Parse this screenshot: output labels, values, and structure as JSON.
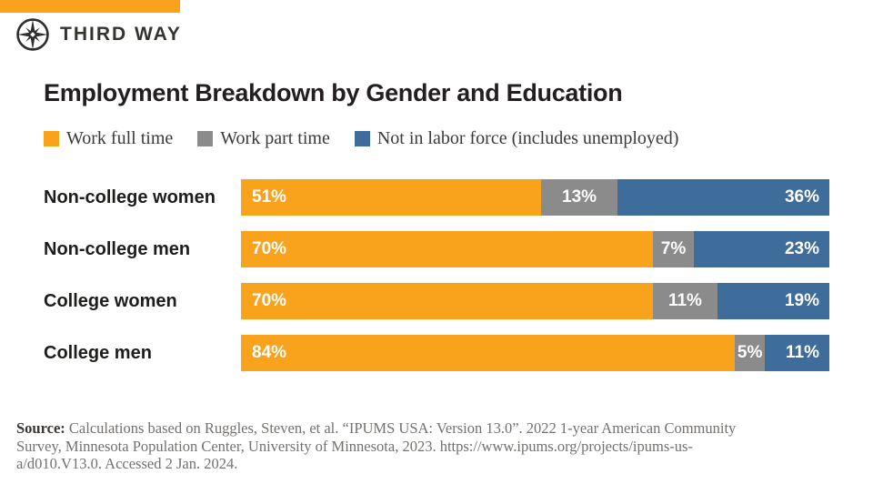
{
  "brand": {
    "name": "THIRD WAY",
    "accent_color": "#F9A21B"
  },
  "title": "Employment Breakdown by Gender and Education",
  "legend": [
    {
      "label": "Work full time",
      "color": "#F9A21B"
    },
    {
      "label": "Work part time",
      "color": "#8B8B8B"
    },
    {
      "label": "Not in labor force (includes unemployed)",
      "color": "#3E6C9B"
    }
  ],
  "chart_data": {
    "type": "bar",
    "orientation": "horizontal",
    "stacked": true,
    "title": "Employment Breakdown by Gender and Education",
    "categories": [
      "Non-college women",
      "Non-college men",
      "College women",
      "College men"
    ],
    "series": [
      {
        "name": "Work full time",
        "color": "#F9A21B",
        "values": [
          51,
          70,
          70,
          84
        ]
      },
      {
        "name": "Work part time",
        "color": "#8B8B8B",
        "values": [
          13,
          7,
          11,
          5
        ]
      },
      {
        "name": "Not in labor force (includes unemployed)",
        "color": "#3E6C9B",
        "values": [
          36,
          23,
          19,
          11
        ]
      }
    ],
    "value_labels": [
      [
        "51%",
        "13%",
        "36%"
      ],
      [
        "70%",
        "7%",
        "23%"
      ],
      [
        "70%",
        "11%",
        "19%"
      ],
      [
        "84%",
        "5%",
        "11%"
      ]
    ],
    "xlim": [
      0,
      100
    ],
    "grid": false,
    "legend_position": "top"
  },
  "footer": {
    "label": "Source:",
    "lines": [
      " Calculations based on Ruggles, Steven, et al. “IPUMS USA: Version 13.0”. 2022 1-year American Community",
      "Survey, Minnesota Population Center, University of Minnesota, 2023. https://www.ipums.org/projects/ipums-us-",
      "a/d010.V13.0. Accessed 2 Jan. 2024."
    ]
  }
}
